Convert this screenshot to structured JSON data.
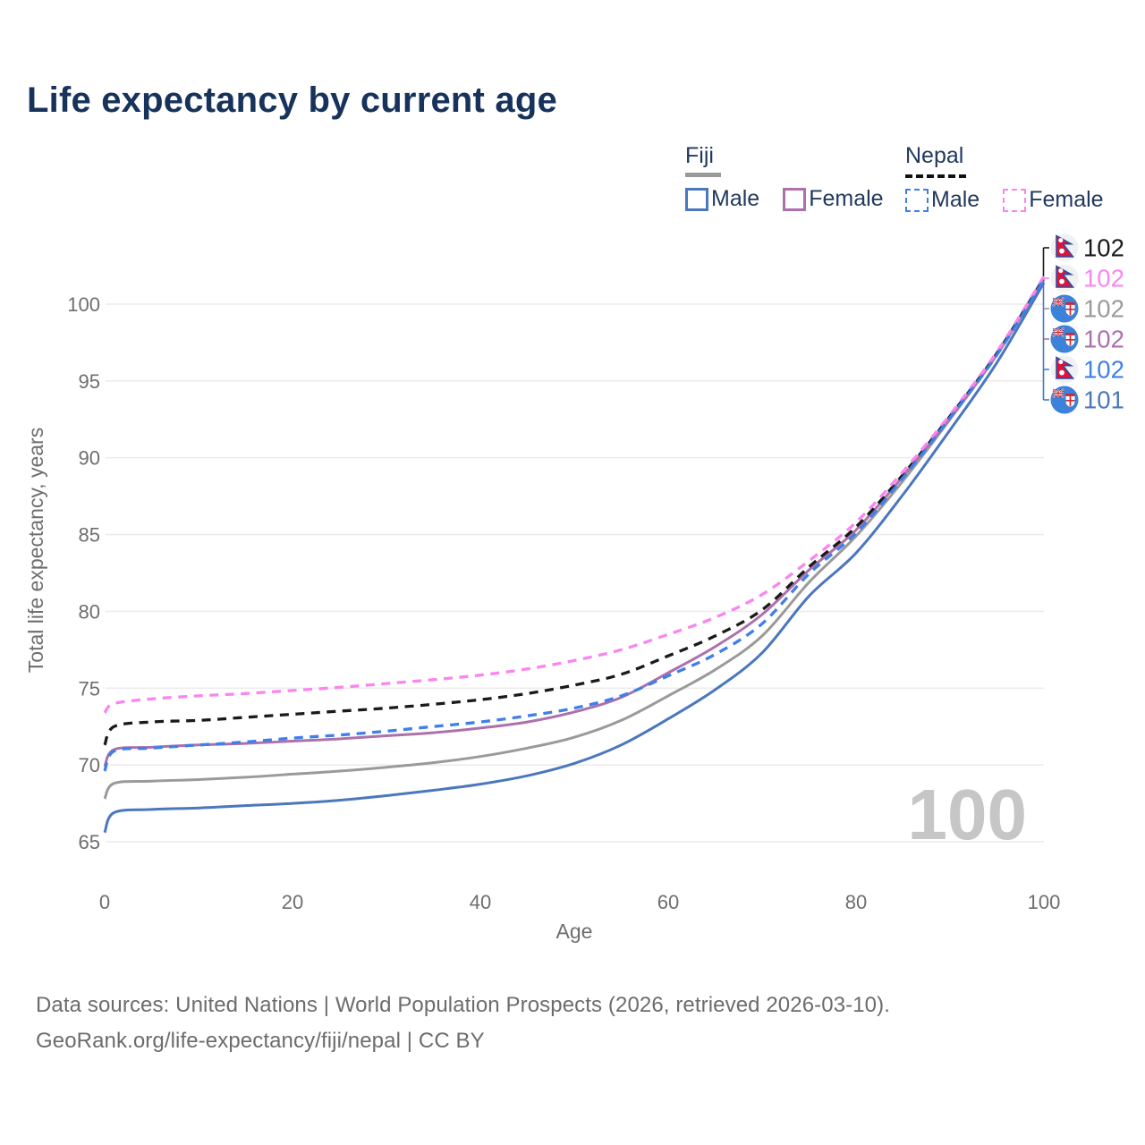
{
  "title": "Life expectancy by current age",
  "colors": {
    "title_text": "#17335c",
    "legend_text": "#22395e",
    "axis_text": "#6e6e6e",
    "grid": "#ececec",
    "watermark": "#c6c6c6",
    "footer_text": "#6c6c6c",
    "bracket_top": "#1a1a1a",
    "bracket_bottom": "#4a77bd"
  },
  "legend": {
    "groups": [
      {
        "label": "Fiji",
        "line_style": "solid",
        "underline_color": "#9a9a9a",
        "items": [
          {
            "label": "Male",
            "color": "#4a77bd"
          },
          {
            "label": "Female",
            "color": "#ad70ac"
          }
        ]
      },
      {
        "label": "Nepal",
        "line_style": "dashed",
        "underline_color": "#111111",
        "items": [
          {
            "label": "Male",
            "color": "#3f7fe8"
          },
          {
            "label": "Female",
            "color": "#fa85f0"
          }
        ]
      }
    ]
  },
  "chart_data": {
    "type": "line",
    "title": "Life expectancy by current age",
    "xlabel": "Age",
    "ylabel": "Total life expectancy, years",
    "xlim": [
      0,
      100
    ],
    "ylim": [
      65,
      102.5
    ],
    "xticks": [
      "0",
      "20",
      "40",
      "60",
      "80",
      "100"
    ],
    "yticks": [
      "65",
      "70",
      "75",
      "80",
      "85",
      "90",
      "95",
      "100"
    ],
    "grid": "horizontal-only",
    "legend_position": "top-right",
    "watermark": "100",
    "x": [
      0,
      1,
      5,
      10,
      15,
      20,
      25,
      30,
      35,
      40,
      45,
      50,
      55,
      60,
      65,
      70,
      75,
      80,
      85,
      90,
      95,
      100
    ],
    "series": [
      {
        "name": "Nepal",
        "flag": "nepal",
        "color": "#1a1a1a",
        "dashed": true,
        "end_label": "102",
        "values": [
          71.3,
          72.5,
          72.8,
          72.9,
          73.1,
          73.3,
          73.5,
          73.7,
          73.95,
          74.25,
          74.65,
          75.2,
          75.9,
          77.1,
          78.4,
          80.1,
          82.9,
          85.5,
          88.9,
          92.7,
          96.8,
          101.7
        ]
      },
      {
        "name": "Nepal Female",
        "flag": "nepal",
        "color": "#fa85f0",
        "dashed": true,
        "end_label": "102",
        "values": [
          73.4,
          74.0,
          74.3,
          74.5,
          74.65,
          74.85,
          75.05,
          75.3,
          75.55,
          75.85,
          76.25,
          76.8,
          77.5,
          78.5,
          79.6,
          81.1,
          83.3,
          85.8,
          89.1,
          92.8,
          96.9,
          101.8
        ]
      },
      {
        "name": "Fiji",
        "flag": "fiji",
        "color": "#9a9a9a",
        "dashed": false,
        "end_label": "102",
        "values": [
          67.8,
          68.8,
          68.95,
          69.05,
          69.2,
          69.4,
          69.6,
          69.85,
          70.15,
          70.55,
          71.1,
          71.8,
          72.9,
          74.5,
          76.2,
          78.4,
          81.9,
          84.9,
          88.5,
          92.5,
          96.7,
          101.6
        ]
      },
      {
        "name": "Fiji Female",
        "flag": "fiji",
        "color": "#ad70ac",
        "dashed": false,
        "end_label": "102",
        "values": [
          69.9,
          71.0,
          71.15,
          71.3,
          71.4,
          71.55,
          71.7,
          71.9,
          72.1,
          72.4,
          72.8,
          73.45,
          74.4,
          76.0,
          77.7,
          79.8,
          82.7,
          85.3,
          88.8,
          92.6,
          96.8,
          101.7
        ]
      },
      {
        "name": "Nepal Male",
        "flag": "nepal",
        "color": "#3f7fe8",
        "dashed": true,
        "end_label": "102",
        "values": [
          69.6,
          70.9,
          71.1,
          71.3,
          71.5,
          71.75,
          71.95,
          72.2,
          72.5,
          72.8,
          73.2,
          73.7,
          74.5,
          75.8,
          77.2,
          79.2,
          82.45,
          85.1,
          88.7,
          92.6,
          96.7,
          101.6
        ]
      },
      {
        "name": "Fiji Male",
        "flag": "fiji",
        "color": "#4a77bd",
        "dashed": false,
        "end_label": "101",
        "values": [
          65.6,
          66.9,
          67.1,
          67.2,
          67.35,
          67.5,
          67.7,
          68.0,
          68.35,
          68.75,
          69.3,
          70.1,
          71.3,
          73.0,
          74.9,
          77.3,
          81.0,
          83.8,
          87.6,
          91.8,
          96.2,
          101.4
        ]
      }
    ]
  },
  "footer": {
    "line1": "Data sources: United Nations | World Population Prospects (2026, retrieved 2026-03-10).",
    "line2": "GeoRank.org/life-expectancy/fiji/nepal | CC BY"
  }
}
